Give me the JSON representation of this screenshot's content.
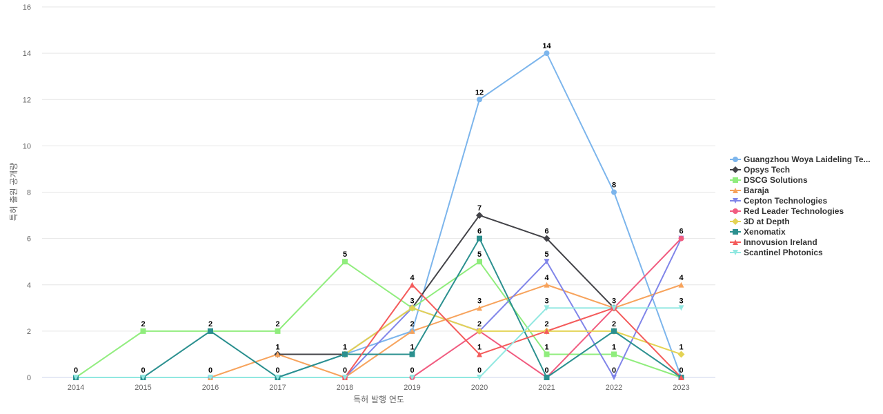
{
  "chart_data": {
    "type": "line",
    "xlabel": "특허 발행 연도",
    "ylabel": "특허 출원 공개량",
    "ylim": [
      0,
      16
    ],
    "yticks": [
      0,
      2,
      4,
      6,
      8,
      10,
      12,
      14,
      16
    ],
    "grid": true,
    "legend_position": "right",
    "categories": [
      "2014",
      "2015",
      "2016",
      "2017",
      "2018",
      "2019",
      "2020",
      "2021",
      "2022",
      "2023"
    ],
    "series": [
      {
        "name": "Guangzhou Woya Laideling Te...",
        "color": "#7cb5ec",
        "marker": "circle",
        "values": [
          0,
          0,
          0,
          0,
          1,
          2,
          12,
          14,
          8,
          0
        ]
      },
      {
        "name": "Opsys Tech",
        "color": "#434348",
        "marker": "diamond",
        "values": [
          null,
          null,
          null,
          1,
          1,
          3,
          7,
          6,
          3,
          null
        ]
      },
      {
        "name": "DSCG Solutions",
        "color": "#90ed7d",
        "marker": "square",
        "values": [
          0,
          2,
          2,
          2,
          5,
          3,
          5,
          1,
          1,
          0
        ]
      },
      {
        "name": "Baraja",
        "color": "#f7a35c",
        "marker": "triangle",
        "values": [
          null,
          null,
          0,
          1,
          0,
          2,
          3,
          4,
          3,
          4
        ]
      },
      {
        "name": "Cepton Technologies",
        "color": "#8085e9",
        "marker": "triangle-down",
        "values": [
          null,
          null,
          null,
          null,
          0,
          3,
          2,
          5,
          0,
          6
        ]
      },
      {
        "name": "Red Leader Technologies",
        "color": "#f15c80",
        "marker": "circle",
        "values": [
          null,
          null,
          null,
          null,
          0,
          0,
          2,
          0,
          3,
          6
        ]
      },
      {
        "name": "3D at Depth",
        "color": "#e4d354",
        "marker": "diamond",
        "values": [
          null,
          null,
          null,
          null,
          1,
          3,
          2,
          2,
          2,
          1
        ]
      },
      {
        "name": "Xenomatix",
        "color": "#2b908f",
        "marker": "square",
        "values": [
          0,
          0,
          2,
          0,
          1,
          1,
          6,
          0,
          2,
          0
        ]
      },
      {
        "name": "Innovusion Ireland",
        "color": "#f45b5b",
        "marker": "triangle",
        "values": [
          null,
          null,
          null,
          null,
          0,
          4,
          1,
          2,
          3,
          0
        ]
      },
      {
        "name": "Scantinel Photonics",
        "color": "#91e8e1",
        "marker": "triangle-down",
        "values": [
          0,
          0,
          0,
          0,
          0,
          0,
          0,
          3,
          3,
          3
        ]
      }
    ],
    "point_labels": [
      {
        "x": "2014",
        "y": 0,
        "text": "0"
      },
      {
        "x": "2015",
        "y": 2,
        "text": "2"
      },
      {
        "x": "2015",
        "y": 0,
        "text": "0"
      },
      {
        "x": "2016",
        "y": 2,
        "text": "2"
      },
      {
        "x": "2016",
        "y": 0,
        "text": "0"
      },
      {
        "x": "2017",
        "y": 2,
        "text": "2"
      },
      {
        "x": "2017",
        "y": 1,
        "text": "1"
      },
      {
        "x": "2017",
        "y": 0,
        "text": "0"
      },
      {
        "x": "2018",
        "y": 5,
        "text": "5"
      },
      {
        "x": "2018",
        "y": 1,
        "text": "1"
      },
      {
        "x": "2018",
        "y": 0,
        "text": "0"
      },
      {
        "x": "2019",
        "y": 4,
        "text": "4"
      },
      {
        "x": "2019",
        "y": 3,
        "text": "3"
      },
      {
        "x": "2019",
        "y": 2,
        "text": "2"
      },
      {
        "x": "2019",
        "y": 1,
        "text": "1"
      },
      {
        "x": "2019",
        "y": 0,
        "text": "0"
      },
      {
        "x": "2020",
        "y": 12,
        "text": "12"
      },
      {
        "x": "2020",
        "y": 7,
        "text": "7"
      },
      {
        "x": "2020",
        "y": 6,
        "text": "6"
      },
      {
        "x": "2020",
        "y": 5,
        "text": "5"
      },
      {
        "x": "2020",
        "y": 3,
        "text": "3"
      },
      {
        "x": "2020",
        "y": 2,
        "text": "2"
      },
      {
        "x": "2020",
        "y": 1,
        "text": "1"
      },
      {
        "x": "2020",
        "y": 0,
        "text": "0"
      },
      {
        "x": "2021",
        "y": 14,
        "text": "14"
      },
      {
        "x": "2021",
        "y": 6,
        "text": "6"
      },
      {
        "x": "2021",
        "y": 5,
        "text": "5"
      },
      {
        "x": "2021",
        "y": 4,
        "text": "4"
      },
      {
        "x": "2021",
        "y": 3,
        "text": "3"
      },
      {
        "x": "2021",
        "y": 2,
        "text": "2"
      },
      {
        "x": "2021",
        "y": 1,
        "text": "1"
      },
      {
        "x": "2021",
        "y": 0,
        "text": "0"
      },
      {
        "x": "2022",
        "y": 8,
        "text": "8"
      },
      {
        "x": "2022",
        "y": 3,
        "text": "3"
      },
      {
        "x": "2022",
        "y": 2,
        "text": "2"
      },
      {
        "x": "2022",
        "y": 1,
        "text": "1"
      },
      {
        "x": "2022",
        "y": 0,
        "text": "0"
      },
      {
        "x": "2023",
        "y": 6,
        "text": "6"
      },
      {
        "x": "2023",
        "y": 4,
        "text": "4"
      },
      {
        "x": "2023",
        "y": 3,
        "text": "3"
      },
      {
        "x": "2023",
        "y": 1,
        "text": "1"
      },
      {
        "x": "2023",
        "y": 0,
        "text": "0"
      }
    ]
  }
}
